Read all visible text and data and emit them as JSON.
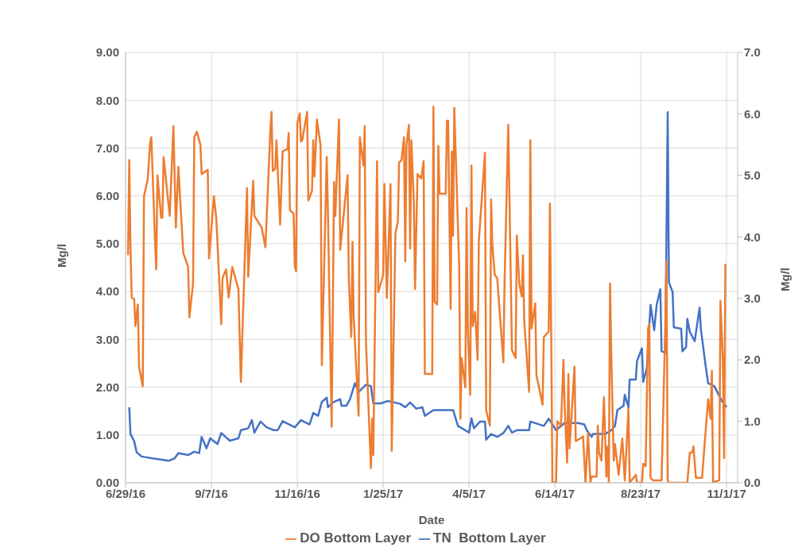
{
  "chart_data": {
    "type": "line",
    "xlabel": "Date",
    "ylabel": "Mg/l",
    "y2label": "Mg/l",
    "xlim": [
      "2016-06-29",
      "2017-11-10"
    ],
    "xticks": [
      {
        "value": "2016-06-29",
        "label": "6/29/16"
      },
      {
        "value": "2016-09-07",
        "label": "9/7/16"
      },
      {
        "value": "2016-11-16",
        "label": "11/16/16"
      },
      {
        "value": "2017-01-25",
        "label": "1/25/17"
      },
      {
        "value": "2017-04-05",
        "label": "4/5/17"
      },
      {
        "value": "2017-06-14",
        "label": "6/14/17"
      },
      {
        "value": "2017-08-23",
        "label": "8/23/17"
      },
      {
        "value": "2017-11-01",
        "label": "11/1/17"
      }
    ],
    "ylim": [
      0,
      9
    ],
    "yticks": [
      {
        "value": 0,
        "label": "0.00"
      },
      {
        "value": 1,
        "label": "1.00"
      },
      {
        "value": 2,
        "label": "2.00"
      },
      {
        "value": 3,
        "label": "3.00"
      },
      {
        "value": 4,
        "label": "4.00"
      },
      {
        "value": 5,
        "label": "5.00"
      },
      {
        "value": 6,
        "label": "6.00"
      },
      {
        "value": 7,
        "label": "7.00"
      },
      {
        "value": 8,
        "label": "8.00"
      },
      {
        "value": 9,
        "label": "9.00"
      }
    ],
    "y2lim": [
      0,
      7
    ],
    "y2ticks": [
      {
        "value": 0,
        "label": "0.0"
      },
      {
        "value": 1,
        "label": "1.0"
      },
      {
        "value": 2,
        "label": "2.0"
      },
      {
        "value": 3,
        "label": "3.0"
      },
      {
        "value": 4,
        "label": "4.0"
      },
      {
        "value": 5,
        "label": "5.0"
      },
      {
        "value": 6,
        "label": "6.0"
      },
      {
        "value": 7,
        "label": "7.0"
      }
    ],
    "grid": true,
    "legend": "bottom",
    "marker": "none",
    "line_style": "solid",
    "series": [
      {
        "name": "TN  Bottom Layer",
        "color": "#4472c4",
        "x": [
          "2016-07-02",
          "2016-07-03",
          "2016-07-06",
          "2016-07-08",
          "2016-07-12",
          "2016-07-21",
          "2016-08-03",
          "2016-08-08",
          "2016-08-11",
          "2016-08-19",
          "2016-08-24",
          "2016-08-28",
          "2016-08-30",
          "2016-09-03",
          "2016-09-06",
          "2016-09-12",
          "2016-09-15",
          "2016-09-22",
          "2016-09-29",
          "2016-10-01",
          "2016-10-07",
          "2016-10-10",
          "2016-10-12",
          "2016-10-17",
          "2016-10-22",
          "2016-10-28",
          "2016-10-31",
          "2016-11-04",
          "2016-11-14",
          "2016-11-19",
          "2016-11-26",
          "2016-11-29",
          "2016-12-03",
          "2016-12-06",
          "2016-12-10",
          "2016-12-11",
          "2016-12-15",
          "2016-12-21",
          "2016-12-22",
          "2016-12-26",
          "2016-12-29",
          "2017-01-02",
          "2017-01-05",
          "2017-01-11",
          "2017-01-15",
          "2017-01-17",
          "2017-01-23",
          "2017-01-29",
          "2017-02-08",
          "2017-02-12",
          "2017-02-16",
          "2017-02-21",
          "2017-02-26",
          "2017-02-28",
          "2017-03-07",
          "2017-03-12",
          "2017-03-23",
          "2017-03-27",
          "2017-04-05",
          "2017-04-07",
          "2017-04-09",
          "2017-04-14",
          "2017-04-18",
          "2017-04-19",
          "2017-04-23",
          "2017-04-28",
          "2017-05-03",
          "2017-05-07",
          "2017-05-10",
          "2017-05-14",
          "2017-05-24",
          "2017-05-25",
          "2017-06-05",
          "2017-06-09",
          "2017-06-15",
          "2017-06-22",
          "2017-07-03",
          "2017-07-08",
          "2017-07-10",
          "2017-07-14",
          "2017-07-15",
          "2017-07-25",
          "2017-07-30",
          "2017-08-02",
          "2017-08-04",
          "2017-08-09",
          "2017-08-10",
          "2017-08-13",
          "2017-08-14",
          "2017-08-19",
          "2017-08-20",
          "2017-08-24",
          "2017-08-25",
          "2017-08-28",
          "2017-08-31",
          "2017-09-03",
          "2017-09-05",
          "2017-09-08",
          "2017-09-09",
          "2017-09-12",
          "2017-09-14",
          "2017-09-15",
          "2017-09-18",
          "2017-09-19",
          "2017-09-25",
          "2017-09-26",
          "2017-09-29",
          "2017-09-30",
          "2017-10-02",
          "2017-10-06",
          "2017-10-10",
          "2017-10-11",
          "2017-10-15",
          "2017-10-17",
          "2017-10-22",
          "2017-10-28",
          "2017-11-01"
        ],
        "values": [
          1.58,
          1.02,
          0.87,
          0.64,
          0.55,
          0.51,
          0.46,
          0.51,
          0.62,
          0.58,
          0.65,
          0.62,
          0.96,
          0.72,
          0.93,
          0.81,
          1.04,
          0.88,
          0.93,
          1.1,
          1.14,
          1.31,
          1.05,
          1.28,
          1.16,
          1.1,
          1.1,
          1.29,
          1.16,
          1.31,
          1.22,
          1.46,
          1.4,
          1.69,
          1.78,
          1.58,
          1.68,
          1.75,
          1.61,
          1.61,
          1.75,
          2.08,
          1.9,
          2.05,
          2.02,
          1.66,
          1.66,
          1.71,
          1.65,
          1.58,
          1.68,
          1.55,
          1.58,
          1.4,
          1.52,
          1.52,
          1.52,
          1.19,
          1.05,
          1.35,
          1.14,
          1.28,
          1.28,
          0.9,
          1.02,
          0.96,
          1.04,
          1.19,
          1.05,
          1.1,
          1.1,
          1.28,
          1.19,
          1.34,
          1.1,
          1.25,
          1.25,
          1.22,
          1.1,
          0.96,
          1.02,
          1.02,
          1.1,
          1.19,
          1.52,
          1.61,
          1.84,
          1.58,
          2.16,
          2.16,
          2.55,
          2.81,
          2.11,
          2.4,
          3.72,
          3.19,
          3.72,
          4.05,
          2.75,
          2.72,
          7.75,
          4.19,
          3.99,
          3.25,
          3.22,
          2.75,
          2.84,
          3.43,
          3.16,
          2.96,
          3.66,
          3.22,
          2.43,
          2.08,
          2.02,
          1.72,
          1.58
        ]
      },
      {
        "name": "DO Bottom Layer",
        "color": "#ed7d31",
        "axis": "y2",
        "x": [
          "2016-07-01",
          "2016-07-02",
          "2016-07-03",
          "2016-07-04",
          "2016-07-06",
          "2016-07-07",
          "2016-07-09",
          "2016-07-10",
          "2016-07-13",
          "2016-07-14",
          "2016-07-17",
          "2016-07-19",
          "2016-07-20",
          "2016-07-23",
          "2016-07-24",
          "2016-07-25",
          "2016-07-28",
          "2016-07-29",
          "2016-07-30",
          "2016-08-04",
          "2016-08-07",
          "2016-08-09",
          "2016-08-11",
          "2016-08-15",
          "2016-08-19",
          "2016-08-20",
          "2016-08-23",
          "2016-08-24",
          "2016-08-26",
          "2016-08-29",
          "2016-08-30",
          "2016-09-04",
          "2016-09-05",
          "2016-09-09",
          "2016-09-11",
          "2016-09-15",
          "2016-09-16",
          "2016-09-19",
          "2016-09-21",
          "2016-09-24",
          "2016-09-29",
          "2016-10-01",
          "2016-10-06",
          "2016-10-07",
          "2016-10-11",
          "2016-10-12",
          "2016-10-18",
          "2016-10-21",
          "2016-10-25",
          "2016-10-26",
          "2016-10-27",
          "2016-10-29",
          "2016-10-30",
          "2016-11-02",
          "2016-11-04",
          "2016-11-08",
          "2016-11-09",
          "2016-11-10",
          "2016-11-13",
          "2016-11-14",
          "2016-11-15",
          "2016-11-16",
          "2016-11-18",
          "2016-11-19",
          "2016-11-20",
          "2016-11-24",
          "2016-11-25",
          "2016-11-28",
          "2016-11-29",
          "2016-11-30",
          "2016-12-02",
          "2016-12-05",
          "2016-12-06",
          "2016-12-10",
          "2016-12-11",
          "2016-12-14",
          "2016-12-16",
          "2016-12-17",
          "2016-12-20",
          "2016-12-21",
          "2016-12-27",
          "2016-12-28",
          "2016-12-30",
          "2016-12-31",
          "2017-01-01",
          "2017-01-05",
          "2017-01-06",
          "2017-01-09",
          "2017-01-10",
          "2017-01-11",
          "2017-01-15",
          "2017-01-16",
          "2017-01-17",
          "2017-01-20",
          "2017-01-21",
          "2017-01-25",
          "2017-01-26",
          "2017-01-28",
          "2017-01-31",
          "2017-02-01",
          "2017-02-04",
          "2017-02-06",
          "2017-02-07",
          "2017-02-09",
          "2017-02-11",
          "2017-02-12",
          "2017-02-13",
          "2017-02-15",
          "2017-02-16",
          "2017-02-17",
          "2017-02-19",
          "2017-02-20",
          "2017-02-22",
          "2017-02-25",
          "2017-02-27",
          "2017-02-28",
          "2017-03-06",
          "2017-03-07",
          "2017-03-08",
          "2017-03-10",
          "2017-03-11",
          "2017-03-12",
          "2017-03-17",
          "2017-03-18",
          "2017-03-19",
          "2017-03-21",
          "2017-03-22",
          "2017-03-23",
          "2017-03-24",
          "2017-03-28",
          "2017-03-29",
          "2017-03-30",
          "2017-04-02",
          "2017-04-03",
          "2017-04-04",
          "2017-04-06",
          "2017-04-07",
          "2017-04-08",
          "2017-04-10",
          "2017-04-12",
          "2017-04-13",
          "2017-04-18",
          "2017-04-19",
          "2017-04-22",
          "2017-04-23",
          "2017-04-24",
          "2017-04-26",
          "2017-04-28",
          "2017-05-03",
          "2017-05-04",
          "2017-05-07",
          "2017-05-10",
          "2017-05-13",
          "2017-05-14",
          "2017-05-16",
          "2017-05-18",
          "2017-05-19",
          "2017-05-20",
          "2017-05-24",
          "2017-05-25",
          "2017-05-26",
          "2017-05-29",
          "2017-05-30",
          "2017-06-04",
          "2017-06-05",
          "2017-06-09",
          "2017-06-10",
          "2017-06-11",
          "2017-06-12",
          "2017-06-15",
          "2017-06-16",
          "2017-06-19",
          "2017-06-21",
          "2017-06-22",
          "2017-06-24",
          "2017-06-25",
          "2017-06-26",
          "2017-06-30",
          "2017-07-01",
          "2017-07-03",
          "2017-07-07",
          "2017-07-09",
          "2017-07-11",
          "2017-07-13",
          "2017-07-14",
          "2017-07-18",
          "2017-07-19",
          "2017-07-20",
          "2017-07-22",
          "2017-07-24",
          "2017-07-26",
          "2017-07-27",
          "2017-07-28",
          "2017-07-29",
          "2017-07-30",
          "2017-08-01",
          "2017-08-02",
          "2017-08-05",
          "2017-08-08",
          "2017-08-10",
          "2017-08-13",
          "2017-08-14",
          "2017-08-19",
          "2017-08-20",
          "2017-08-24",
          "2017-08-25",
          "2017-08-27",
          "2017-08-29",
          "2017-08-30",
          "2017-08-31",
          "2017-09-02",
          "2017-09-09",
          "2017-09-12",
          "2017-09-13",
          "2017-09-14",
          "2017-09-15",
          "2017-09-30",
          "2017-10-02",
          "2017-10-04",
          "2017-10-05",
          "2017-10-07",
          "2017-10-12",
          "2017-10-15",
          "2017-10-17",
          "2017-10-19",
          "2017-10-20",
          "2017-10-21",
          "2017-10-26",
          "2017-10-27",
          "2017-10-29",
          "2017-10-30",
          "2017-10-31"
        ],
        "values": [
          3.7,
          5.25,
          3.81,
          3.01,
          2.99,
          2.55,
          2.9,
          1.89,
          1.57,
          4.66,
          4.93,
          5.53,
          5.62,
          3.93,
          3.47,
          5.0,
          4.31,
          4.31,
          5.3,
          4.34,
          5.8,
          4.15,
          5.14,
          3.74,
          3.51,
          2.69,
          3.24,
          5.62,
          5.71,
          5.5,
          5.02,
          5.09,
          3.65,
          4.66,
          4.29,
          2.58,
          3.33,
          3.47,
          3.01,
          3.51,
          3.15,
          1.64,
          4.79,
          3.35,
          4.91,
          4.34,
          4.15,
          3.83,
          5.71,
          6.03,
          5.07,
          5.11,
          5.57,
          4.2,
          5.39,
          5.43,
          5.69,
          4.43,
          4.38,
          3.51,
          3.44,
          5.85,
          6.01,
          5.55,
          5.57,
          6.03,
          4.59,
          4.75,
          5.57,
          4.98,
          5.91,
          5.48,
          1.91,
          5.3,
          4.38,
          0.91,
          4.89,
          4.34,
          5.91,
          3.79,
          5.0,
          3.33,
          2.37,
          3.92,
          2.69,
          1.09,
          5.62,
          5.16,
          5.8,
          2.28,
          0.24,
          1.04,
          0.45,
          5.23,
          3.1,
          3.38,
          4.86,
          3.01,
          4.86,
          0.52,
          4.06,
          4.25,
          5.21,
          5.25,
          5.62,
          3.6,
          5.5,
          5.82,
          3.81,
          5.57,
          4.57,
          3.15,
          5.02,
          4.95,
          5.23,
          1.77,
          1.77,
          6.12,
          2.94,
          2.9,
          5.48,
          4.7,
          4.7,
          5.89,
          5.89,
          2.83,
          5.39,
          4.02,
          6.1,
          3.51,
          1.04,
          2.03,
          1.55,
          4.47,
          2.51,
          1.43,
          5.16,
          2.55,
          2.78,
          2.0,
          3.92,
          5.37,
          1.18,
          0.93,
          4.61,
          3.88,
          3.38,
          3.33,
          1.96,
          3.28,
          5.82,
          2.16,
          2.03,
          4.02,
          3.24,
          3.03,
          3.7,
          2.64,
          1.48,
          5.57,
          2.51,
          2.92,
          1.75,
          1.27,
          2.37,
          2.46,
          4.54,
          2.46,
          0.0,
          0.01,
          1.0,
          0.93,
          2.0,
          1.23,
          0.33,
          1.77,
          0.56,
          1.89,
          0.68,
          0.7,
          0.75,
          0.0,
          0.81,
          0.0,
          0.1,
          0.1,
          0.93,
          0.49,
          0.36,
          1.39,
          0.1,
          0.59,
          0.0,
          3.24,
          2.07,
          0.36,
          0.63,
          0.13,
          0.72,
          0.04,
          1.2,
          0.0,
          0.13,
          0.0,
          0.0,
          0.31,
          0.27,
          2.51,
          2.58,
          0.08,
          0.04,
          0.04,
          2.55,
          3.6,
          0.04,
          0.0,
          0.0,
          0.49,
          0.49,
          0.59,
          0.08,
          0.08,
          0.86,
          1.36,
          1.04,
          1.82,
          0.01,
          0.04,
          2.96,
          1.96,
          0.4,
          3.56
        ]
      }
    ]
  }
}
